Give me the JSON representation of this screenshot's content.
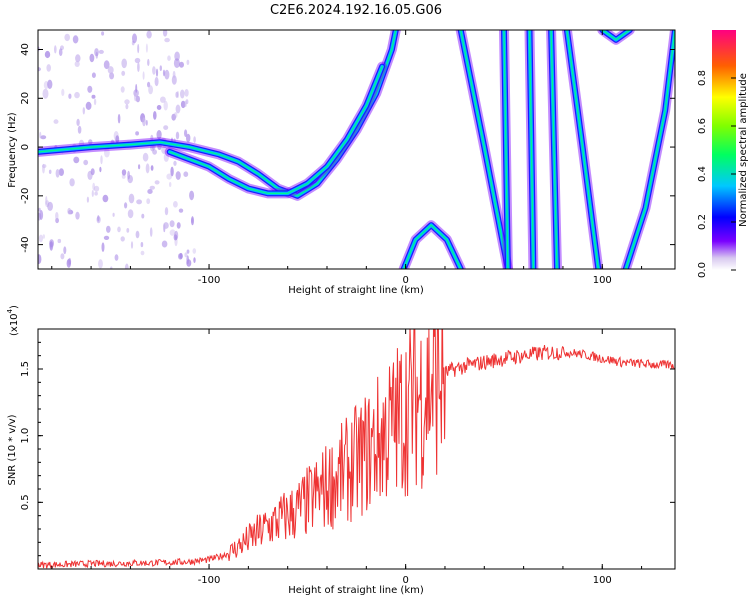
{
  "title": "C2E6.2024.192.16.05.G06",
  "chart_data": [
    {
      "type": "heatmap",
      "xlabel": "Height of straight line (km)",
      "ylabel": "Frequency (Hz)",
      "xlim": [
        -187,
        137
      ],
      "ylim": [
        -50,
        48
      ],
      "x_ticks": [
        -100,
        0,
        100
      ],
      "y_ticks": [
        -40,
        -20,
        0,
        20,
        40
      ],
      "colorbar": {
        "label": "Normalized spectral amplitude",
        "range": [
          0,
          1
        ],
        "ticks": [
          "0.0",
          "0.2",
          "0.4",
          "0.6",
          "0.8"
        ]
      },
      "ridges": [
        {
          "x": [
            -187,
            -160,
            -140,
            -125,
            -110,
            -95,
            -85,
            -75,
            -65,
            -55,
            -45,
            -35,
            -25,
            -15,
            -7,
            -5
          ],
          "y": [
            -2,
            0,
            1,
            2,
            0,
            -3,
            -6,
            -11,
            -17,
            -20,
            -15,
            -5,
            7,
            22,
            40,
            48
          ]
        },
        {
          "x": [
            -120,
            -100,
            -90,
            -80,
            -70,
            -60,
            -50,
            -40,
            -30,
            -20,
            -12
          ],
          "y": [
            -2,
            -8,
            -13,
            -17,
            -19,
            -19,
            -15,
            -8,
            3,
            17,
            33
          ]
        },
        {
          "x": [
            -1,
            5,
            13,
            21,
            28
          ],
          "y": [
            -50,
            -38,
            -32,
            -38,
            -50
          ]
        },
        {
          "x": [
            28,
            40,
            52
          ],
          "y": [
            48,
            0,
            -50
          ]
        },
        {
          "x": [
            50,
            52
          ],
          "y": [
            48,
            -50
          ]
        },
        {
          "x": [
            63,
            65
          ],
          "y": [
            48,
            -50
          ]
        },
        {
          "x": [
            74,
            77
          ],
          "y": [
            48,
            -50
          ]
        },
        {
          "x": [
            82,
            90,
            98
          ],
          "y": [
            48,
            0,
            -50
          ]
        },
        {
          "x": [
            100,
            107,
            114
          ],
          "y": [
            48,
            44,
            48
          ]
        },
        {
          "x": [
            112,
            122,
            132,
            137
          ],
          "y": [
            -50,
            -25,
            15,
            48
          ]
        }
      ]
    },
    {
      "type": "line",
      "xlabel": "Height of straight line (km)",
      "ylabel": "SNR (10 * v/v)",
      "y_multiplier": "(x10",
      "y_multiplier_exp": "4",
      "xlim": [
        -187,
        137
      ],
      "ylim": [
        0,
        18000
      ],
      "x_ticks": [
        -100,
        0,
        100
      ],
      "y_ticks": [
        "0.5",
        "1.0",
        "1.5"
      ],
      "series": [
        {
          "x": [
            -187,
            -170,
            -160,
            -150,
            -140,
            -130,
            -120,
            -110,
            -100,
            -95,
            -90,
            -85,
            -80,
            -75,
            -70,
            -65,
            -60,
            -55,
            -50,
            -45,
            -40,
            -35,
            -30,
            -25,
            -20,
            -15,
            -10,
            -5,
            0,
            5,
            10,
            15,
            20,
            25,
            30,
            40,
            50,
            60,
            70,
            80,
            90,
            100,
            110,
            120,
            130,
            137
          ],
          "y": [
            300,
            350,
            400,
            400,
            450,
            450,
            500,
            550,
            700,
            900,
            1200,
            1700,
            2200,
            2700,
            3200,
            3600,
            4000,
            4400,
            5000,
            5600,
            6200,
            6800,
            7400,
            8000,
            8700,
            9400,
            10200,
            11000,
            12000,
            12800,
            13400,
            14200,
            14700,
            15000,
            15200,
            15500,
            15800,
            16000,
            16200,
            16300,
            16100,
            15800,
            15500,
            15400,
            15300,
            15300
          ]
        }
      ]
    }
  ]
}
